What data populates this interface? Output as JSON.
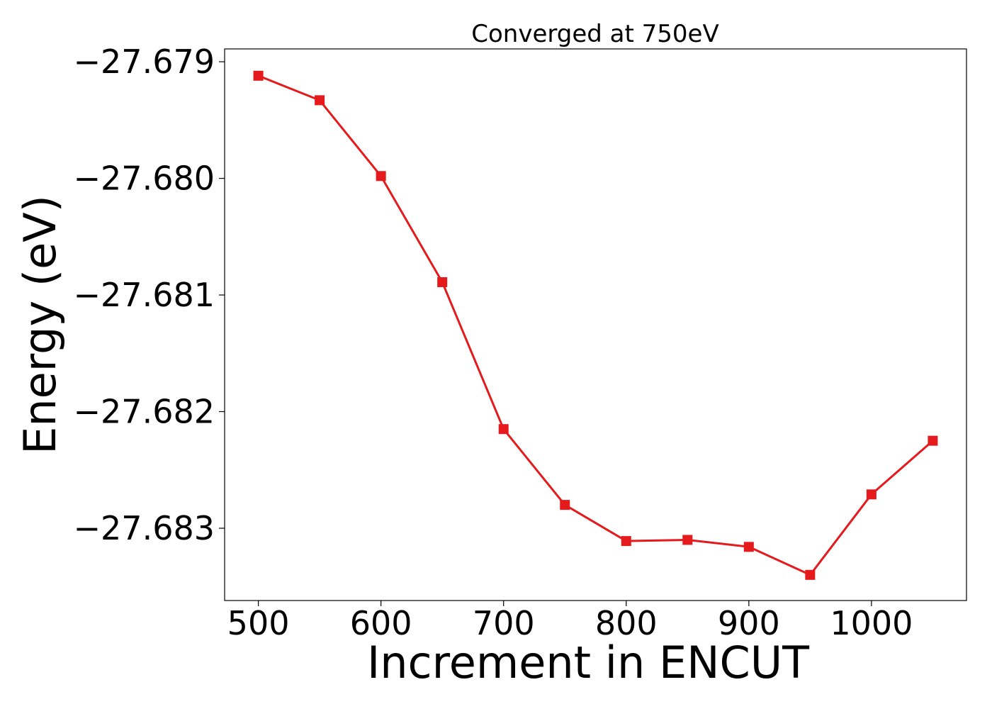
{
  "chart_data": {
    "type": "line",
    "title": "Converged at 750eV",
    "xlabel": "Increment in ENCUT",
    "ylabel": "Energy (eV)",
    "x": [
      500,
      550,
      600,
      650,
      700,
      750,
      800,
      850,
      900,
      950,
      1000,
      1050
    ],
    "series": [
      {
        "values": [
          -27.67912,
          -27.67933,
          -27.67998,
          -27.68089,
          -27.68215,
          -27.6828,
          -27.68311,
          -27.6831,
          -27.68316,
          -27.6834,
          -27.68271,
          -27.68225
        ],
        "color": "#e41a1c",
        "marker": "square"
      }
    ],
    "xticks": [
      500,
      600,
      700,
      800,
      900,
      1000
    ],
    "xtick_labels": [
      "500",
      "600",
      "700",
      "800",
      "900",
      "1000"
    ],
    "yticks": [
      -27.679,
      -27.68,
      -27.681,
      -27.682,
      -27.683
    ],
    "ytick_labels": [
      "−27.679",
      "−27.680",
      "−27.681",
      "−27.682",
      "−27.683"
    ],
    "xlim": [
      472.5,
      1077.5
    ],
    "ylim": [
      -27.68362,
      -27.67889
    ],
    "grid": false,
    "legend": false
  }
}
